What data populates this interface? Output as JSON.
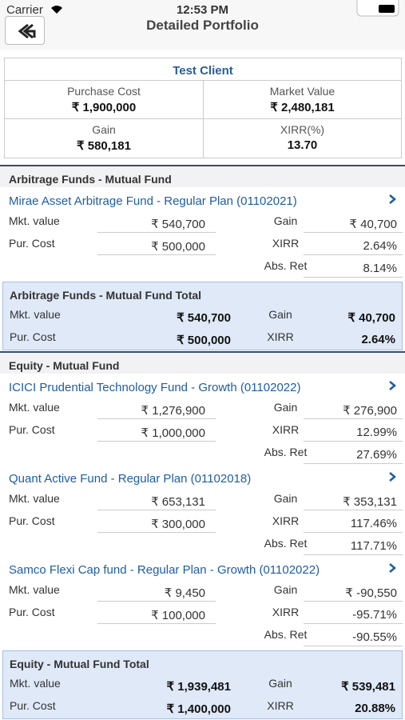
{
  "status_bar": {
    "carrier": "Carrier",
    "time": "12:53 PM"
  },
  "header": {
    "title": "Detailed Portfolio"
  },
  "summary": {
    "client": "Test Client",
    "cells": [
      {
        "label": "Purchase Cost",
        "value": "₹ 1,900,000"
      },
      {
        "label": "Market Value",
        "value": "₹ 2,480,181"
      },
      {
        "label": "Gain",
        "value": "₹ 580,181"
      },
      {
        "label": "XIRR(%)",
        "value": "13.70"
      }
    ]
  },
  "labels": {
    "mkt_value": "Mkt. value",
    "pur_cost": "Pur. Cost",
    "gain": "Gain",
    "xirr": "XIRR",
    "abs_ret": "Abs. Ret"
  },
  "groups": [
    {
      "title": "Arbitrage Funds - Mutual Fund",
      "funds": [
        {
          "name": "Mirae Asset Arbitrage Fund - Regular Plan (01102021)",
          "mkt_value": "₹ 540,700",
          "pur_cost": "₹ 500,000",
          "gain": "₹ 40,700",
          "xirr": "2.64%",
          "abs_ret": "8.14%"
        }
      ],
      "total": {
        "title": "Arbitrage Funds - Mutual Fund Total",
        "mkt_value": "₹ 540,700",
        "pur_cost": "₹ 500,000",
        "gain": "₹ 40,700",
        "xirr": "2.64%"
      }
    },
    {
      "title": "Equity - Mutual Fund",
      "funds": [
        {
          "name": "ICICI Prudential Technology Fund - Growth (01102022)",
          "mkt_value": "₹ 1,276,900",
          "pur_cost": "₹ 1,000,000",
          "gain": "₹ 276,900",
          "xirr": "12.99%",
          "abs_ret": "27.69%"
        },
        {
          "name": "Quant Active Fund - Regular Plan (01102018)",
          "mkt_value": "₹ 653,131",
          "pur_cost": "₹ 300,000",
          "gain": "₹ 353,131",
          "xirr": "117.46%",
          "abs_ret": "117.71%"
        },
        {
          "name": "Samco Flexi Cap fund - Regular Plan - Growth (01102022)",
          "mkt_value": "₹ 9,450",
          "pur_cost": "₹ 100,000",
          "gain": "₹ -90,550",
          "xirr": "-95.71%",
          "abs_ret": "-90.55%"
        }
      ],
      "total": {
        "title": "Equity - Mutual Fund Total",
        "mkt_value": "₹ 1,939,481",
        "pur_cost": "₹ 1,400,000",
        "gain": "₹ 539,481",
        "xirr": "20.88%"
      }
    }
  ]
}
